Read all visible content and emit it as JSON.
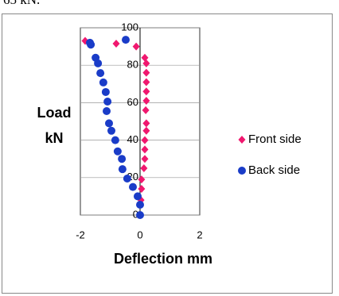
{
  "header_fragment": "65 kN.",
  "chart_data": {
    "type": "scatter",
    "y_label": "Load kN",
    "x_label": "Deflection mm",
    "xlim": [
      -2,
      2
    ],
    "xticks": [
      -2,
      0,
      2
    ],
    "ylim": [
      0,
      100
    ],
    "yticks": [
      0,
      20,
      40,
      60,
      80,
      100
    ],
    "grid": true,
    "legend": "right",
    "series": [
      {
        "name": "Front side",
        "color": "#f0186f",
        "marker": "diamond",
        "x": [
          0.16,
          0.21,
          0.21,
          0.21,
          0.21,
          0.21,
          0.19,
          0.21,
          0.21,
          0.16,
          0.16,
          0.16,
          0.13,
          0.05,
          0.05,
          0.03,
          -1.84,
          -0.8,
          -0.13
        ],
        "values": [
          84,
          81,
          76,
          71,
          66,
          61,
          56,
          49,
          45,
          40,
          35,
          30,
          25,
          19,
          14,
          8,
          93,
          91.5,
          90
        ]
      },
      {
        "name": "Back side",
        "color": "#1a3cc8",
        "marker": "circle",
        "x": [
          0,
          0,
          -0.08,
          -0.24,
          -0.43,
          -0.59,
          -0.61,
          -0.75,
          -0.83,
          -0.96,
          -1.04,
          -1.12,
          -1.09,
          -1.15,
          -1.23,
          -1.33,
          -1.41,
          -1.49,
          -1.65,
          -1.68,
          -0.48
        ],
        "values": [
          0,
          5.5,
          10,
          15,
          19.5,
          24.5,
          30,
          34,
          40,
          45,
          49,
          55.5,
          60.6,
          65.7,
          70.8,
          75.8,
          81,
          84,
          91,
          92,
          93.6
        ]
      }
    ]
  }
}
